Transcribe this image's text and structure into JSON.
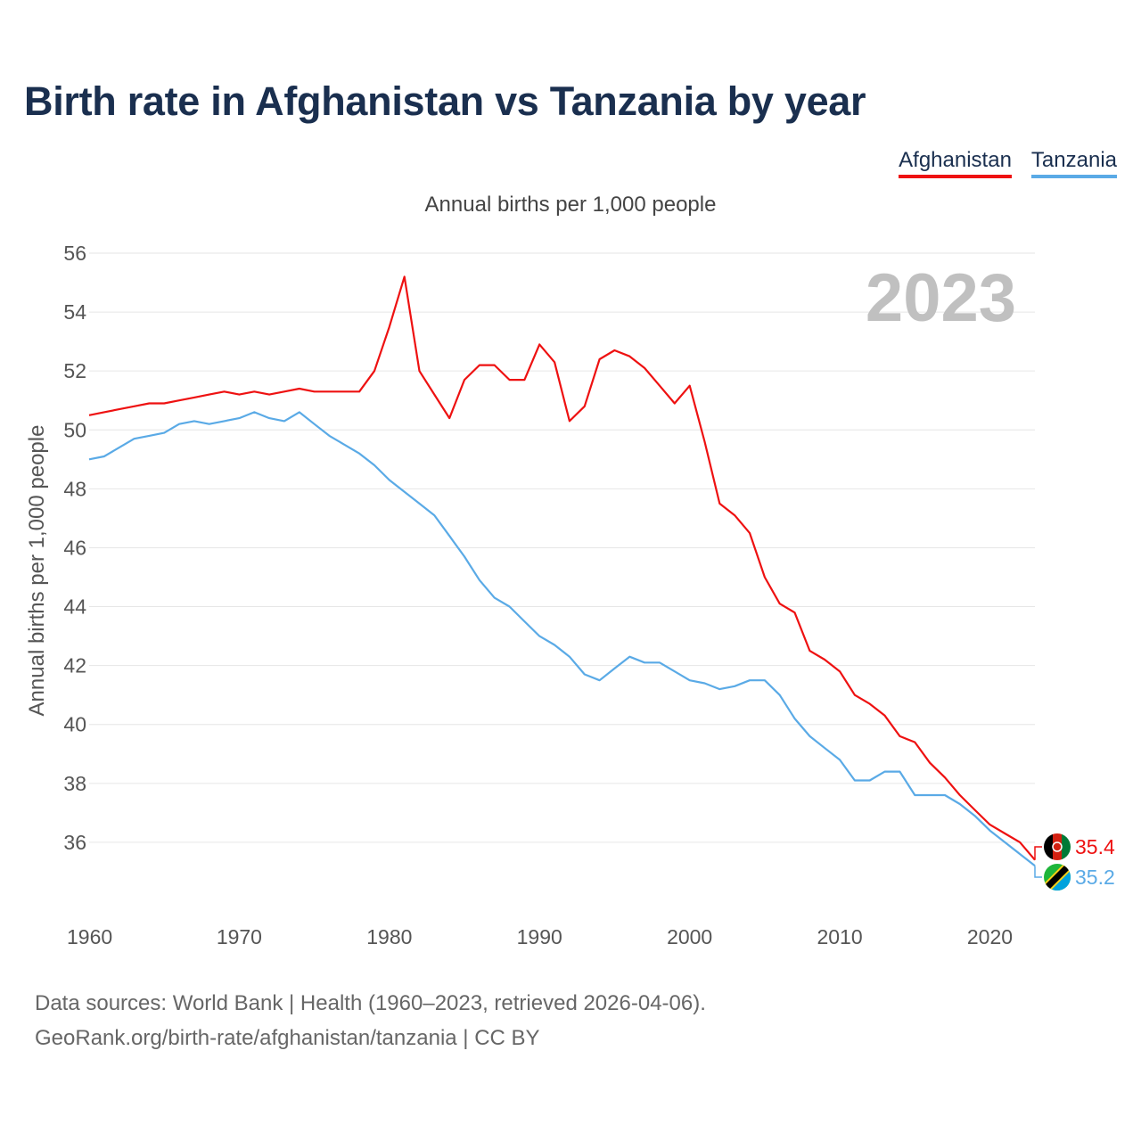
{
  "title": "Birth rate in Afghanistan vs Tanzania by year",
  "subtitle": "Annual births per 1,000 people",
  "legend": [
    {
      "label": "Afghanistan",
      "color": "#ee1111"
    },
    {
      "label": "Tanzania",
      "color": "#5aaae6"
    }
  ],
  "footer": {
    "line1": "Data sources: World Bank | Health (1960–2023, retrieved 2026-04-06).",
    "line2": "GeoRank.org/birth-rate/afghanistan/tanzania | CC BY"
  },
  "chart_data": {
    "type": "line",
    "title": "Birth rate in Afghanistan vs Tanzania by year",
    "ylabel": "Annual births per 1,000 people",
    "xlabel": "",
    "highlight_year": "2023",
    "xlim": [
      1960,
      2023
    ],
    "ylim": [
      34,
      56
    ],
    "x_ticks": [
      1960,
      1970,
      1980,
      1990,
      2000,
      2010,
      2020
    ],
    "y_ticks": [
      36,
      38,
      40,
      42,
      44,
      46,
      48,
      50,
      52,
      54,
      56
    ],
    "grid": true,
    "x": [
      1960,
      1961,
      1962,
      1963,
      1964,
      1965,
      1966,
      1967,
      1968,
      1969,
      1970,
      1971,
      1972,
      1973,
      1974,
      1975,
      1976,
      1977,
      1978,
      1979,
      1980,
      1981,
      1982,
      1983,
      1984,
      1985,
      1986,
      1987,
      1988,
      1989,
      1990,
      1991,
      1992,
      1993,
      1994,
      1995,
      1996,
      1997,
      1998,
      1999,
      2000,
      2001,
      2002,
      2003,
      2004,
      2005,
      2006,
      2007,
      2008,
      2009,
      2010,
      2011,
      2012,
      2013,
      2014,
      2015,
      2016,
      2017,
      2018,
      2019,
      2020,
      2021,
      2022,
      2023
    ],
    "series": [
      {
        "name": "Afghanistan",
        "color": "#ee1111",
        "end_label": "35.4",
        "values": [
          50.5,
          50.6,
          50.7,
          50.8,
          50.9,
          50.9,
          51.0,
          51.1,
          51.2,
          51.3,
          51.2,
          51.3,
          51.2,
          51.3,
          51.4,
          51.3,
          51.3,
          51.3,
          51.3,
          52.0,
          53.5,
          55.2,
          52.0,
          51.2,
          50.4,
          51.7,
          52.2,
          52.2,
          51.7,
          51.7,
          52.9,
          52.3,
          50.3,
          50.8,
          52.4,
          52.7,
          52.5,
          52.1,
          51.5,
          50.9,
          51.5,
          49.6,
          47.5,
          47.1,
          46.5,
          45.0,
          44.1,
          43.8,
          42.5,
          42.2,
          41.8,
          41.0,
          40.7,
          40.3,
          39.6,
          39.4,
          38.7,
          38.2,
          37.6,
          37.1,
          36.6,
          36.3,
          36.0,
          35.4
        ]
      },
      {
        "name": "Tanzania",
        "color": "#5aaae6",
        "end_label": "35.2",
        "values": [
          49.0,
          49.1,
          49.4,
          49.7,
          49.8,
          49.9,
          50.2,
          50.3,
          50.2,
          50.3,
          50.4,
          50.6,
          50.4,
          50.3,
          50.6,
          50.2,
          49.8,
          49.5,
          49.2,
          48.8,
          48.3,
          47.9,
          47.5,
          47.1,
          46.4,
          45.7,
          44.9,
          44.3,
          44.0,
          43.5,
          43.0,
          42.7,
          42.3,
          41.7,
          41.5,
          41.9,
          42.3,
          42.1,
          42.1,
          41.8,
          41.5,
          41.4,
          41.2,
          41.3,
          41.5,
          41.5,
          41.0,
          40.2,
          39.6,
          39.2,
          38.8,
          38.1,
          38.1,
          38.4,
          38.4,
          37.6,
          37.6,
          37.6,
          37.3,
          36.9,
          36.4,
          36.0,
          35.6,
          35.2
        ]
      }
    ]
  }
}
